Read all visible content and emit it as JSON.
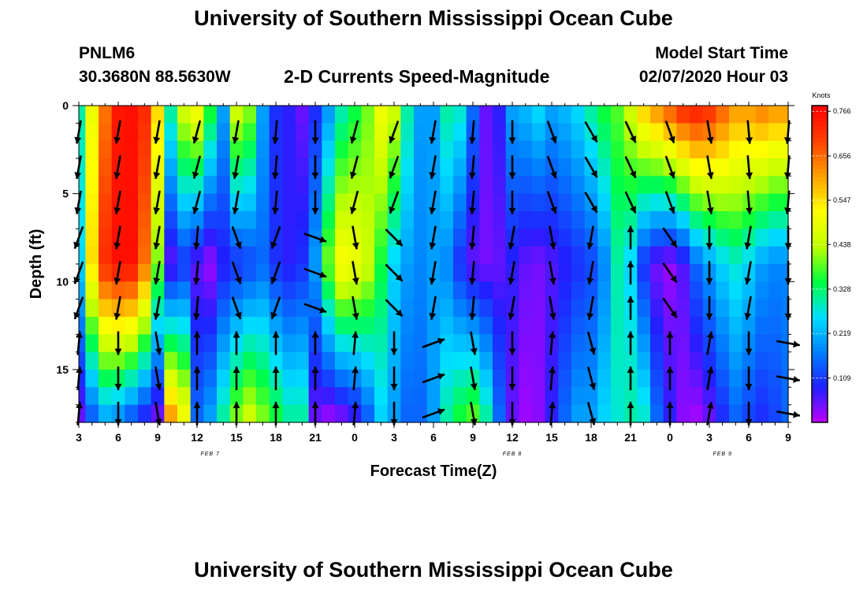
{
  "page": {
    "title_top": "University of Southern Mississippi Ocean Cube",
    "title_bottom": "University of Southern Mississippi Ocean Cube",
    "station": "PNLM6",
    "coords": "30.3680N 88.5630W",
    "subtitle": "2-D Currents Speed-Magnitude",
    "model_start_label": "Model Start Time",
    "model_start_value": "02/07/2020 Hour 03"
  },
  "chart_data": {
    "type": "heatmap",
    "xlabel": "Forecast Time(Z)",
    "ylabel": "Depth (ft)",
    "x_hours": [
      0,
      54
    ],
    "x_tick_labels": [
      "3",
      "6",
      "9",
      "12",
      "15",
      "18",
      "21",
      "0",
      "3",
      "6",
      "9",
      "12",
      "15",
      "18",
      "21",
      "0",
      "3",
      "6",
      "9"
    ],
    "date_labels": [
      {
        "text": "FEB 7",
        "hour": 10
      },
      {
        "text": "FEB 8",
        "hour": 33
      },
      {
        "text": "FEB 9",
        "hour": 49
      }
    ],
    "y_range": [
      0,
      18
    ],
    "y_ticks": [
      0,
      5,
      10,
      15
    ],
    "colorbar": {
      "title": "Knots",
      "labels": [
        "0.766",
        "0.656",
        "0.547",
        "0.438",
        "0.328",
        "0.219",
        "0.109"
      ],
      "levels": [
        0.766,
        0.656,
        0.547,
        0.438,
        0.328,
        0.219,
        0.109
      ],
      "min": 0.0,
      "max": 0.78,
      "colors": [
        "#c000ff",
        "#2020ff",
        "#0080ff",
        "#00e0ff",
        "#00ff40",
        "#c0ff00",
        "#ffff00",
        "#ffa000",
        "#ff4000",
        "#ff0000"
      ]
    },
    "depths_ft": [
      0.5,
      1.5,
      2.5,
      3.5,
      4.5,
      5.5,
      6.5,
      7.5,
      8.5,
      9.5,
      10.5,
      11.5,
      12.5,
      13.5,
      14.5,
      15.5,
      16.5,
      17.5
    ],
    "profile_hours": [
      0,
      1,
      2,
      3,
      4,
      5,
      6,
      7,
      8,
      9,
      10,
      11,
      12,
      13,
      14,
      15,
      16,
      17,
      18,
      19,
      20,
      21,
      22,
      23,
      24,
      25,
      26,
      27,
      28,
      29,
      30,
      31,
      32,
      33,
      34,
      35,
      36,
      37,
      38,
      39,
      40,
      41,
      42,
      43,
      44,
      45,
      46,
      47,
      48,
      49,
      50,
      51,
      52,
      53,
      54
    ],
    "surface_speed_knots": [
      0.3,
      0.5,
      0.65,
      0.75,
      0.76,
      0.72,
      0.55,
      0.3,
      0.45,
      0.5,
      0.35,
      0.2,
      0.45,
      0.4,
      0.2,
      0.1,
      0.08,
      0.05,
      0.1,
      0.2,
      0.3,
      0.35,
      0.4,
      0.5,
      0.45,
      0.3,
      0.2,
      0.2,
      0.3,
      0.28,
      0.15,
      0.05,
      0.08,
      0.2,
      0.22,
      0.25,
      0.2,
      0.22,
      0.25,
      0.3,
      0.35,
      0.38,
      0.45,
      0.55,
      0.6,
      0.65,
      0.7,
      0.72,
      0.7,
      0.65,
      0.6,
      0.6,
      0.62,
      0.6,
      0.6
    ],
    "mid_speed_knots": [
      0.25,
      0.55,
      0.72,
      0.76,
      0.76,
      0.65,
      0.4,
      0.05,
      0.1,
      0.05,
      0.02,
      0.08,
      0.1,
      0.12,
      0.15,
      0.1,
      0.08,
      0.1,
      0.2,
      0.4,
      0.52,
      0.5,
      0.45,
      0.35,
      0.25,
      0.2,
      0.18,
      0.2,
      0.18,
      0.1,
      0.05,
      0.04,
      0.05,
      0.08,
      0.05,
      0.04,
      0.06,
      0.08,
      0.1,
      0.12,
      0.18,
      0.3,
      0.25,
      0.1,
      0.04,
      0.02,
      0.06,
      0.15,
      0.2,
      0.25,
      0.28,
      0.25,
      0.2,
      0.18,
      0.18
    ],
    "bottom_speed_knots": [
      0.05,
      0.15,
      0.22,
      0.2,
      0.15,
      0.1,
      0.05,
      0.6,
      0.5,
      0.15,
      0.2,
      0.3,
      0.4,
      0.45,
      0.4,
      0.35,
      0.3,
      0.3,
      0.05,
      0.03,
      0.05,
      0.08,
      0.15,
      0.25,
      0.2,
      0.15,
      0.15,
      0.2,
      0.3,
      0.35,
      0.38,
      0.3,
      0.15,
      0.05,
      0.02,
      0.03,
      0.08,
      0.15,
      0.2,
      0.2,
      0.25,
      0.28,
      0.3,
      0.28,
      0.15,
      0.08,
      0.03,
      0.02,
      0.05,
      0.1,
      0.15,
      0.12,
      0.1,
      0.12,
      0.15
    ],
    "arrows": {
      "hours": [
        0,
        3,
        6,
        9,
        12,
        15,
        18,
        21,
        24,
        27,
        30,
        33,
        36,
        39,
        42,
        45,
        48,
        51,
        54
      ],
      "depths_ft": [
        1.5,
        3.5,
        5.5,
        7.5,
        9.5,
        11.5,
        13.5,
        15.5,
        17.5
      ],
      "dir_deg_surface": [
        190,
        190,
        190,
        195,
        190,
        185,
        180,
        195,
        200,
        190,
        185,
        180,
        160,
        150,
        155,
        160,
        170,
        175,
        185
      ],
      "dir_deg_mid": [
        200,
        190,
        190,
        185,
        160,
        200,
        110,
        170,
        135,
        190,
        185,
        190,
        170,
        190,
        0,
        145,
        180,
        190,
        180
      ],
      "dir_deg_bottom": [
        5,
        180,
        170,
        0,
        0,
        0,
        0,
        5,
        180,
        70,
        170,
        180,
        5,
        165,
        0,
        0,
        10,
        180,
        100
      ]
    }
  }
}
